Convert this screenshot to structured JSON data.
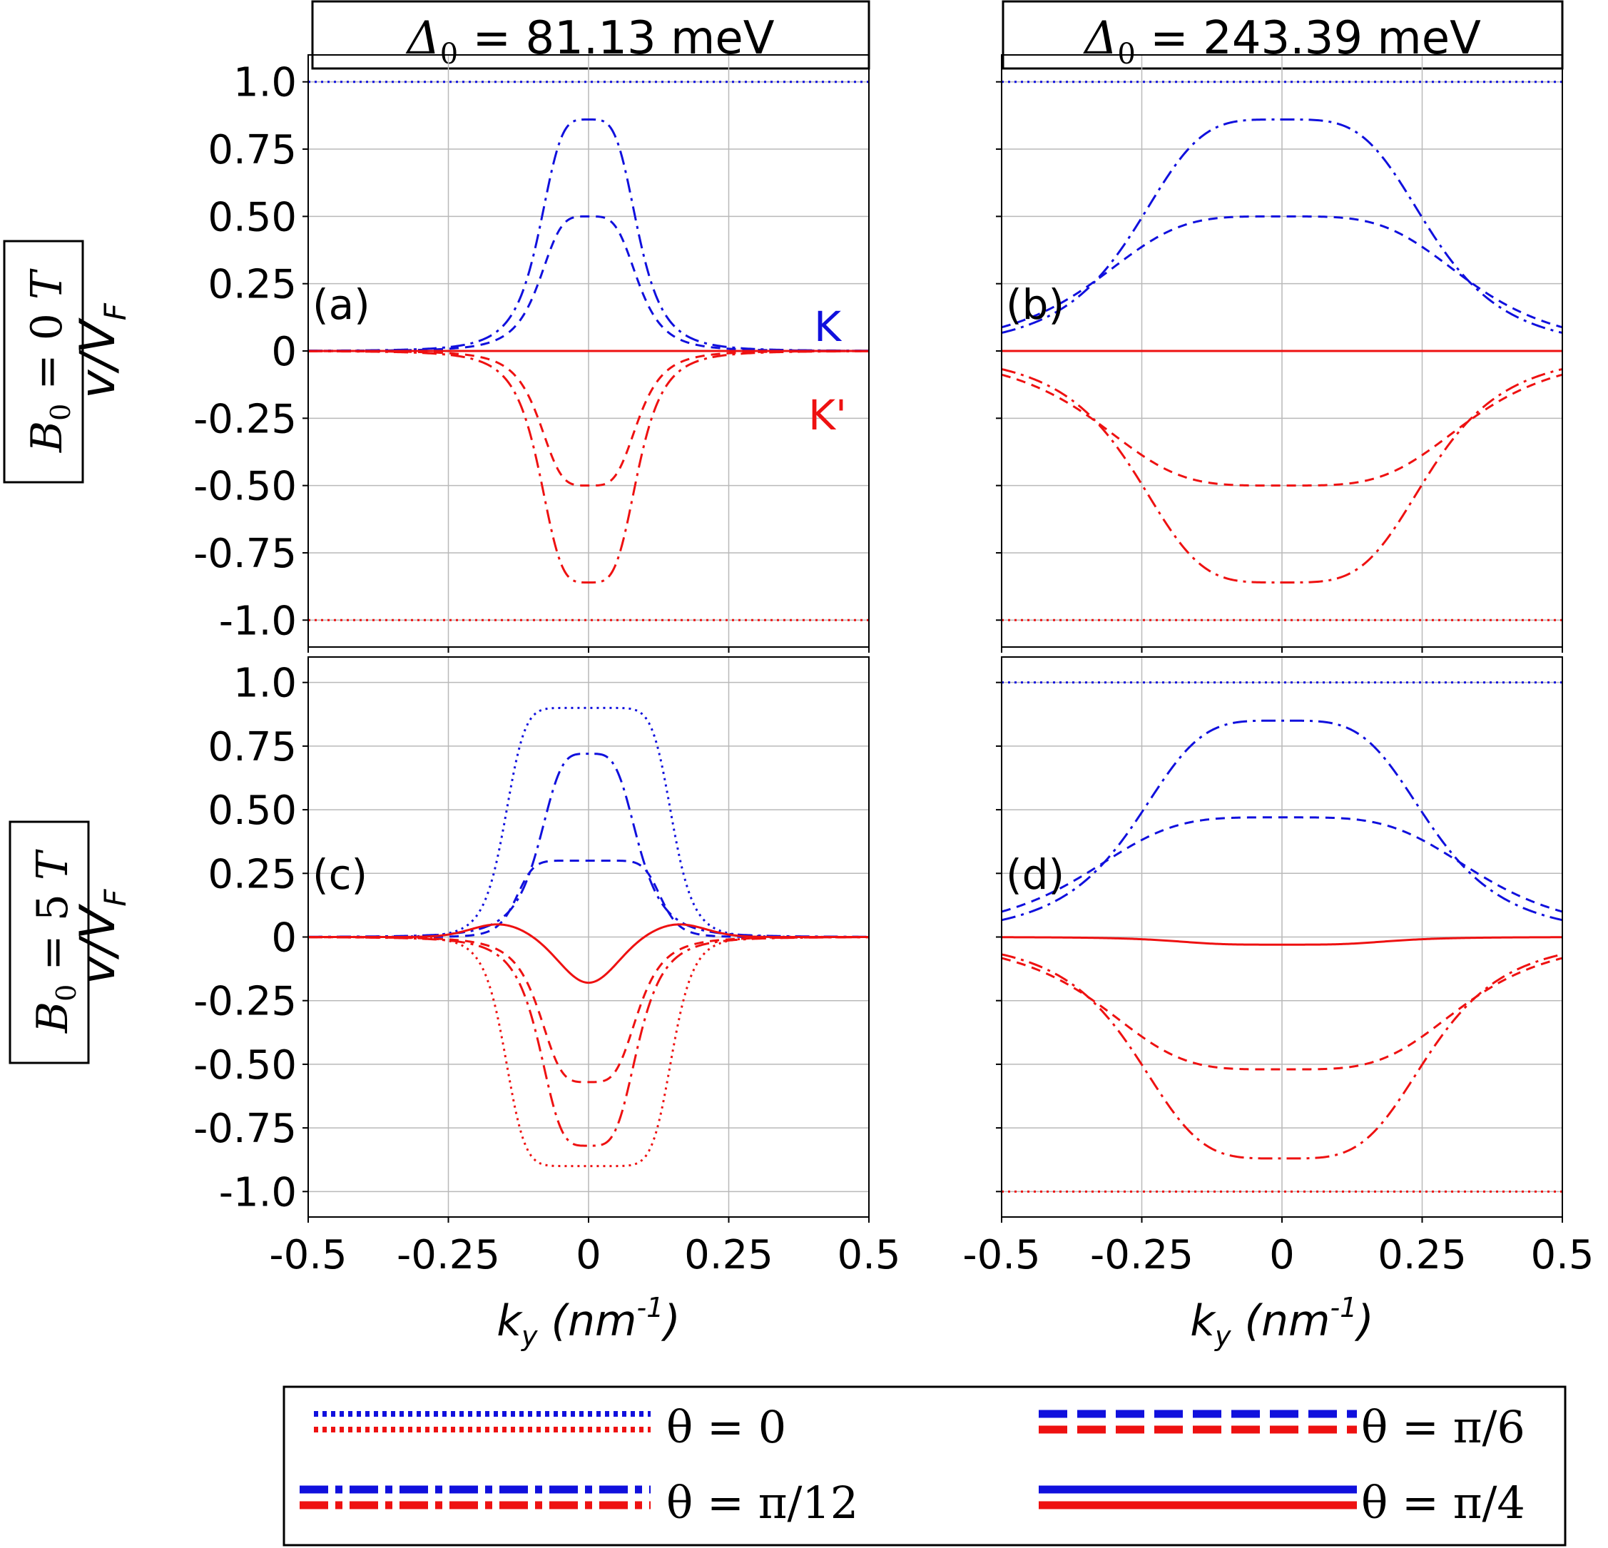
{
  "figure": {
    "columns": [
      {
        "title": "Δ₀ = 81.13 meV",
        "symbol": "Δ",
        "subscript": "0",
        "value": "81.13 meV"
      },
      {
        "title": "Δ₀ = 243.39 meV",
        "symbol": "Δ",
        "subscript": "0",
        "value": "243.39 meV"
      }
    ],
    "rows": [
      {
        "title": "B₀ = 0 T",
        "symbol": "B",
        "subscript": "0",
        "value": "0",
        "unit": "T"
      },
      {
        "title": "B₀ = 5 T",
        "symbol": "B",
        "subscript": "0",
        "value": "5",
        "unit": "T"
      }
    ],
    "valley_labels": {
      "K": "K",
      "Kprime": "K'"
    },
    "colors": {
      "K": "#1010dd",
      "Kprime": "#ee1111",
      "grid": "#b9b9b9"
    },
    "legend": [
      {
        "style": "dotted",
        "label": "θ = 0"
      },
      {
        "style": "dashed",
        "label": "θ = π/6"
      },
      {
        "style": "dashdot",
        "label": "θ = π/12"
      },
      {
        "style": "solid",
        "label": "θ = π/4"
      }
    ]
  },
  "chart_data": [
    {
      "panel": "(a)",
      "type": "line",
      "xlabel": "k_y (nm^-1)",
      "ylabel": "v/V_F",
      "xlim": [
        -0.5,
        0.5
      ],
      "ylim": [
        -1.1,
        1.1
      ],
      "xticks": [
        "-0.5",
        "-0.25",
        "0",
        "0.25",
        "0.5"
      ],
      "yticks": [
        "1.0",
        "0.75",
        "0.50",
        "0.25",
        "0",
        "-0.25",
        "-0.50",
        "-0.75",
        "-1.0"
      ],
      "series": [
        {
          "name": "K, θ = 0",
          "valley": "K",
          "style": "dotted",
          "peak": 1.0,
          "width": 0,
          "floor": 1.0
        },
        {
          "name": "K, θ = π/12",
          "valley": "K",
          "style": "dashdot",
          "peak": 0.86,
          "width": 0.09
        },
        {
          "name": "K, θ = π/6",
          "valley": "K",
          "style": "dashed",
          "peak": 0.5,
          "width": 0.09
        },
        {
          "name": "K', θ = π/4",
          "valley": "Kprime",
          "style": "solid",
          "peak": 0.0,
          "width": 0.09
        },
        {
          "name": "K', θ = π/6",
          "valley": "Kprime",
          "style": "dashed",
          "peak": -0.5,
          "width": 0.09
        },
        {
          "name": "K', θ = π/12",
          "valley": "Kprime",
          "style": "dashdot",
          "peak": -0.86,
          "width": 0.09
        },
        {
          "name": "K', θ = 0",
          "valley": "Kprime",
          "style": "dotted",
          "peak": -1.0,
          "width": 0,
          "floor": -1.0
        }
      ]
    },
    {
      "panel": "(b)",
      "type": "line",
      "xlabel": "k_y (nm^-1)",
      "ylabel": "v/V_F",
      "xlim": [
        -0.5,
        0.5
      ],
      "ylim": [
        -1.1,
        1.1
      ],
      "xticks": [
        "-0.5",
        "-0.25",
        "0",
        "0.25",
        "0.5"
      ],
      "series": [
        {
          "name": "K, θ = 0",
          "valley": "K",
          "style": "dotted",
          "peak": 1.0,
          "width": 0,
          "floor": 1.0
        },
        {
          "name": "K, θ = π/12",
          "valley": "K",
          "style": "dashdot",
          "peak": 0.86,
          "width": 0.27
        },
        {
          "name": "K, θ = π/6",
          "valley": "K",
          "style": "dashed",
          "peak": 0.5,
          "width": 0.34
        },
        {
          "name": "K', θ = π/4",
          "valley": "Kprime",
          "style": "solid",
          "peak": 0.0,
          "width": 0.3
        },
        {
          "name": "K', θ = π/6",
          "valley": "Kprime",
          "style": "dashed",
          "peak": -0.5,
          "width": 0.34
        },
        {
          "name": "K', θ = π/12",
          "valley": "Kprime",
          "style": "dashdot",
          "peak": -0.86,
          "width": 0.27
        },
        {
          "name": "K', θ = 0",
          "valley": "Kprime",
          "style": "dotted",
          "peak": -1.0,
          "width": 0,
          "floor": -1.0
        }
      ]
    },
    {
      "panel": "(c)",
      "type": "line",
      "xlabel": "k_y (nm^-1)",
      "ylabel": "v/V_F",
      "xlim": [
        -0.5,
        0.5
      ],
      "ylim": [
        -1.1,
        1.1
      ],
      "xticks": [
        "-0.5",
        "-0.25",
        "0",
        "0.25",
        "0.5"
      ],
      "yticks": [
        "1.0",
        "0.75",
        "0.50",
        "0.25",
        "0",
        "-0.25",
        "-0.50",
        "-0.75",
        "-1.0"
      ],
      "series": [
        {
          "name": "K, θ = 0",
          "valley": "K",
          "style": "dotted",
          "shape": "plateau",
          "peak": 0.9,
          "width": 0.15
        },
        {
          "name": "K, θ = π/12",
          "valley": "K",
          "style": "dashdot",
          "peak": 0.72,
          "width": 0.09
        },
        {
          "name": "K, θ = π/6",
          "valley": "K",
          "style": "dashed",
          "shape": "plateau",
          "peak": 0.3,
          "width": 0.13
        },
        {
          "name": "K', θ = π/4",
          "valley": "Kprime",
          "style": "solid",
          "shape": "dip",
          "peak": -0.18,
          "width": 0.07
        },
        {
          "name": "K', θ = π/6",
          "valley": "Kprime",
          "style": "dashed",
          "peak": -0.57,
          "width": 0.09
        },
        {
          "name": "K', θ = π/12",
          "valley": "Kprime",
          "style": "dashdot",
          "peak": -0.82,
          "width": 0.09
        },
        {
          "name": "K', θ = 0",
          "valley": "Kprime",
          "style": "dotted",
          "shape": "plateau",
          "peak": -0.9,
          "width": 0.15
        }
      ]
    },
    {
      "panel": "(d)",
      "type": "line",
      "xlabel": "k_y (nm^-1)",
      "ylabel": "v/V_F",
      "xlim": [
        -0.5,
        0.5
      ],
      "ylim": [
        -1.1,
        1.1
      ],
      "xticks": [
        "-0.5",
        "-0.25",
        "0",
        "0.25",
        "0.5"
      ],
      "series": [
        {
          "name": "K, θ = 0",
          "valley": "K",
          "style": "dotted",
          "peak": 1.0,
          "width": 0,
          "floor": 1.0
        },
        {
          "name": "K, θ = π/12",
          "valley": "K",
          "style": "dashdot",
          "peak": 0.85,
          "width": 0.27
        },
        {
          "name": "K, θ = π/6",
          "valley": "K",
          "style": "dashed",
          "peak": 0.47,
          "width": 0.36
        },
        {
          "name": "K', θ = π/4",
          "valley": "Kprime",
          "style": "solid",
          "peak": -0.03,
          "width": 0.2
        },
        {
          "name": "K', θ = π/6",
          "valley": "Kprime",
          "style": "dashed",
          "peak": -0.52,
          "width": 0.33
        },
        {
          "name": "K', θ = π/12",
          "valley": "Kprime",
          "style": "dashdot",
          "peak": -0.87,
          "width": 0.27
        },
        {
          "name": "K', θ = 0",
          "valley": "Kprime",
          "style": "dotted",
          "peak": -1.0,
          "width": 0,
          "floor": -1.0
        }
      ]
    }
  ]
}
